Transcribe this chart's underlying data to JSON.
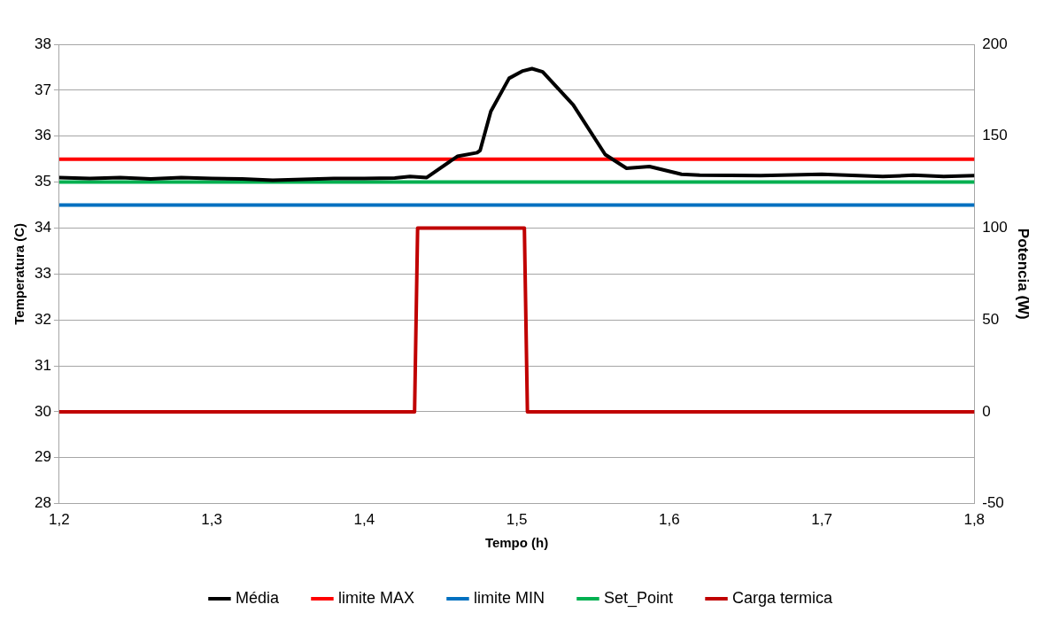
{
  "chart_data": {
    "type": "line",
    "xlabel": "Tempo (h)",
    "ylabel": "Temperatura (C)",
    "y2label": "Potencia (W)",
    "xlim": [
      1.2,
      1.8
    ],
    "xticks": [
      {
        "value": 1.2,
        "label": "1,2"
      },
      {
        "value": 1.3,
        "label": "1,3"
      },
      {
        "value": 1.4,
        "label": "1,4"
      },
      {
        "value": 1.5,
        "label": "1,5"
      },
      {
        "value": 1.6,
        "label": "1,6"
      },
      {
        "value": 1.7,
        "label": "1,7"
      },
      {
        "value": 1.8,
        "label": "1,8"
      }
    ],
    "ylim": [
      28,
      38
    ],
    "yticks": [
      28,
      29,
      30,
      31,
      32,
      33,
      34,
      35,
      36,
      37,
      38
    ],
    "y2lim": [
      -50,
      200
    ],
    "y2ticks": [
      -50,
      0,
      50,
      100,
      150,
      200
    ],
    "grid": "y",
    "legend": "bottom",
    "marker": "none",
    "line_style": "solid",
    "series": [
      {
        "name": "Média",
        "color": "#000000",
        "x": [
          1.2,
          1.22,
          1.24,
          1.26,
          1.28,
          1.3,
          1.32,
          1.34,
          1.36,
          1.38,
          1.4,
          1.42,
          1.43,
          1.441,
          1.461,
          1.474,
          1.476,
          1.483,
          1.495,
          1.504,
          1.51,
          1.517,
          1.537,
          1.558,
          1.572,
          1.587,
          1.608,
          1.62,
          1.66,
          1.7,
          1.74,
          1.76,
          1.78,
          1.8
        ],
        "values": [
          35.1,
          35.08,
          35.1,
          35.07,
          35.1,
          35.08,
          35.07,
          35.04,
          35.06,
          35.08,
          35.08,
          35.09,
          35.12,
          35.1,
          35.56,
          35.64,
          35.69,
          36.54,
          37.26,
          37.42,
          37.47,
          37.4,
          36.68,
          35.6,
          35.3,
          35.34,
          35.17,
          35.15,
          35.14,
          35.17,
          35.12,
          35.15,
          35.12,
          35.14
        ]
      },
      {
        "name": "limite MAX",
        "color": "#ff0000",
        "x": [
          1.2,
          1.8
        ],
        "values": [
          35.5,
          35.5
        ]
      },
      {
        "name": "limite MIN",
        "color": "#0070c0",
        "x": [
          1.2,
          1.8
        ],
        "values": [
          34.5,
          34.5
        ]
      },
      {
        "name": "Set_Point",
        "color": "#00b050",
        "x": [
          1.2,
          1.8
        ],
        "values": [
          35,
          35
        ]
      },
      {
        "name": "Carga termica",
        "color": "#c00000",
        "axis": "y2",
        "x": [
          1.2,
          1.433,
          1.435,
          1.505,
          1.507,
          1.8
        ],
        "values": [
          0,
          0,
          100,
          100,
          0,
          0
        ]
      }
    ]
  }
}
